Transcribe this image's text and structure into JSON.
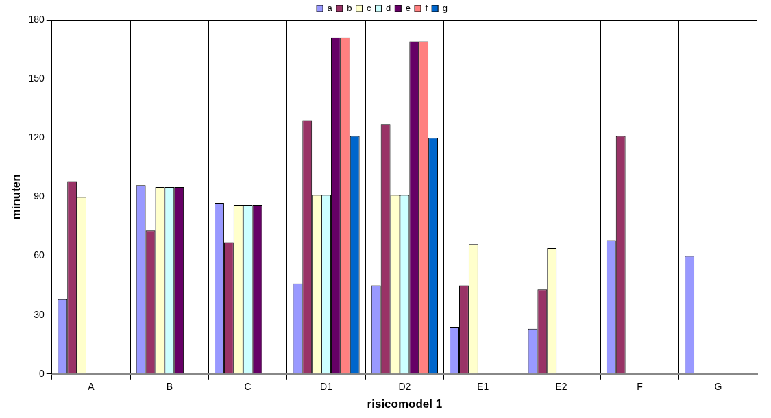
{
  "chart_data": {
    "type": "bar",
    "xlabel": "risicomodel 1",
    "ylabel": "minuten",
    "categories": [
      "A",
      "B",
      "C",
      "D1",
      "D2",
      "E1",
      "E2",
      "F",
      "G"
    ],
    "series": [
      {
        "name": "a",
        "color": "#9999ff",
        "values": [
          38,
          96,
          87,
          46,
          45,
          24,
          23,
          68,
          60
        ]
      },
      {
        "name": "b",
        "color": "#993366",
        "values": [
          98,
          73,
          67,
          129,
          127,
          45,
          43,
          121,
          null
        ]
      },
      {
        "name": "c",
        "color": "#ffffcc",
        "values": [
          90,
          95,
          86,
          91,
          91,
          66,
          64,
          null,
          null
        ]
      },
      {
        "name": "d",
        "color": "#ccffff",
        "values": [
          null,
          95,
          86,
          91,
          91,
          null,
          null,
          null,
          null
        ]
      },
      {
        "name": "e",
        "color": "#660066",
        "values": [
          null,
          95,
          86,
          171,
          169,
          null,
          null,
          null,
          null
        ]
      },
      {
        "name": "f",
        "color": "#ff8080",
        "values": [
          null,
          null,
          null,
          171,
          169,
          null,
          null,
          null,
          null
        ]
      },
      {
        "name": "g",
        "color": "#0066cc",
        "values": [
          null,
          null,
          null,
          121,
          120,
          null,
          null,
          null,
          null
        ]
      }
    ],
    "ylim": [
      0,
      180
    ],
    "yticks": [
      0,
      30,
      60,
      90,
      120,
      150,
      180
    ],
    "grid": true,
    "legend": "top"
  }
}
